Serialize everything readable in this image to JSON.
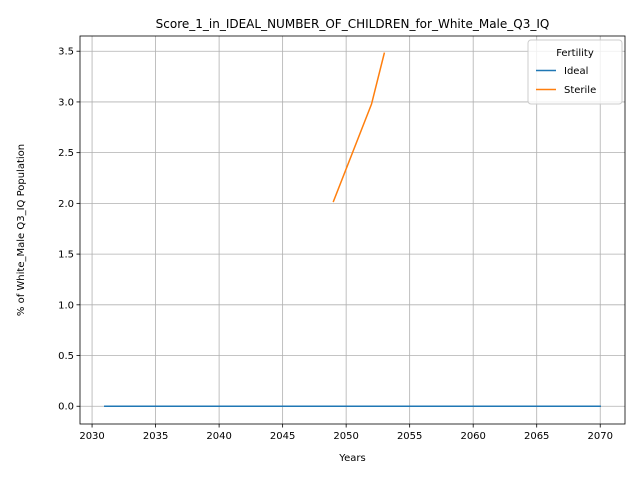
{
  "chart_data": {
    "type": "line",
    "title": "Score_1_in_IDEAL_NUMBER_OF_CHILDREN_for_White_Male_Q3_IQ",
    "xlabel": "Years",
    "ylabel": "% of White_Male Q3_IQ Population",
    "xlim": [
      2029.05,
      2071.95
    ],
    "ylim": [
      -0.175,
      3.65
    ],
    "xticks": [
      2030,
      2035,
      2040,
      2045,
      2050,
      2055,
      2060,
      2065,
      2070
    ],
    "yticks": [
      0.0,
      0.5,
      1.0,
      1.5,
      2.0,
      2.5,
      3.0,
      3.5
    ],
    "ytick_labels": [
      "0.0",
      "0.5",
      "1.0",
      "1.5",
      "2.0",
      "2.5",
      "3.0",
      "3.5"
    ],
    "grid": true,
    "legend": {
      "title": "Fertility",
      "placement": "top-right"
    },
    "series": [
      {
        "name": "Ideal",
        "color": "#1f77b4",
        "x": [
          2031,
          2035,
          2040,
          2045,
          2050,
          2055,
          2060,
          2065,
          2070
        ],
        "y": [
          0,
          0,
          0,
          0,
          0,
          0,
          0,
          0,
          0
        ]
      },
      {
        "name": "Sterile",
        "color": "#ff7f0e",
        "x": [
          2049,
          2052,
          2053
        ],
        "y": [
          2.02,
          2.98,
          3.48
        ]
      }
    ]
  }
}
